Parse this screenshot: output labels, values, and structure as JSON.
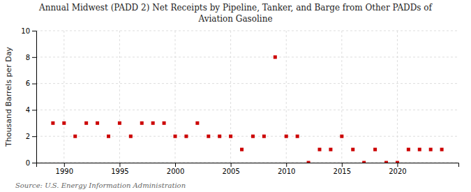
{
  "chart_data": {
    "type": "scatter",
    "title": "Annual Midwest (PADD 2) Net Receipts by Pipeline, Tanker, and Barge from Other PADDs of",
    "subtitle": "Aviation Gasoline",
    "y_label": "Thousand Barrels per Day",
    "annotations": [
      "Source: U.S. Energy Information Administration"
    ],
    "x": [
      1989,
      1990,
      1991,
      1992,
      1993,
      1994,
      1995,
      1996,
      1997,
      1998,
      1999,
      2000,
      2001,
      2002,
      2003,
      2004,
      2005,
      2006,
      2007,
      2008,
      2009,
      2010,
      2011,
      2012,
      2013,
      2014,
      2015,
      2016,
      2017,
      2018,
      2019,
      2020,
      2021,
      2022,
      2023,
      2024
    ],
    "values": [
      3,
      3,
      2,
      3,
      3,
      2,
      3,
      2,
      3,
      3,
      3,
      2,
      2,
      3,
      2,
      2,
      2,
      1,
      2,
      2,
      8,
      2,
      2,
      0,
      1,
      1,
      2,
      1,
      0,
      1,
      0,
      0,
      1,
      1,
      1,
      1
    ],
    "color": "#cc0000",
    "marker": "square",
    "xlim": [
      1987.5,
      2025.5
    ],
    "ylim": [
      0,
      10
    ],
    "xticks": [
      1990,
      1995,
      2000,
      2005,
      2010,
      2015,
      2020
    ],
    "yticks": [
      0,
      2,
      4,
      6,
      8,
      10
    ],
    "grid": true
  }
}
